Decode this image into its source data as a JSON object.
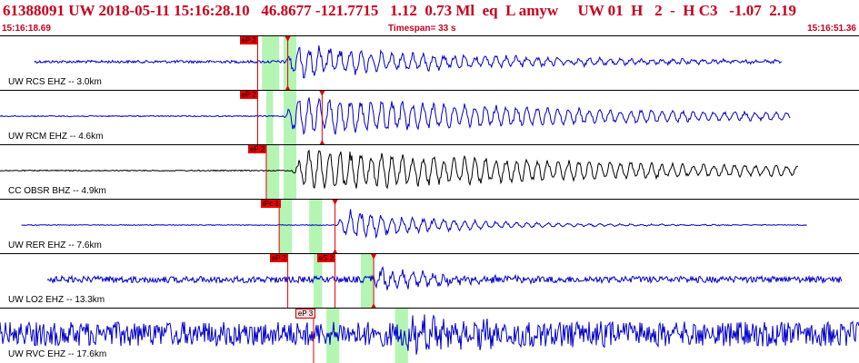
{
  "header": {
    "event_line": "61388091 UW 2018-05-11 15:16:28.10   46.8677 -121.7715   1.12  0.73 Ml  eq  L amyw     UW 01  H   2  -  H C3   -1.07  2.19",
    "start_time": "15:16:18.69",
    "timespan": "Timespan=  33 s",
    "end_time": "15:16:51.36"
  },
  "colors": {
    "header_text": "#c8001e",
    "trace_blue": "#0000cc",
    "trace_black": "#000000",
    "pick_red": "#e60000",
    "window_green": "#b4f5b4"
  },
  "traces": [
    {
      "station": "UW RCS EHZ --  3.0km",
      "color": "blue",
      "amp": 0.55,
      "noise": 0.05,
      "onset": 0.04,
      "end": 0.91,
      "sig": 0.33,
      "decay": 0.22,
      "picks": [
        {
          "label": "eP 2",
          "t": 0.3,
          "style": "red"
        },
        {
          "label": "",
          "t": 0.335,
          "style": "marker"
        }
      ],
      "windows": [
        [
          0.305,
          0.325
        ],
        [
          0.33,
          0.345
        ]
      ]
    },
    {
      "station": "UW RCM EHZ --  4.6km",
      "color": "blue",
      "amp": 0.7,
      "noise": 0.02,
      "onset": 0.0,
      "end": 0.92,
      "sig": 0.33,
      "decay": 0.35,
      "picks": [
        {
          "label": "eP 2",
          "t": 0.3,
          "style": "red"
        },
        {
          "label": "",
          "t": 0.375,
          "style": "marker"
        }
      ],
      "windows": [
        [
          0.31,
          0.318
        ],
        [
          0.33,
          0.345
        ]
      ]
    },
    {
      "station": "CC OBSR BHZ --  4.9km",
      "color": "black",
      "amp": 0.75,
      "noise": 0.02,
      "onset": 0.0,
      "end": 0.93,
      "sig": 0.34,
      "decay": 0.4,
      "picks": [
        {
          "label": "eP 2",
          "t": 0.31,
          "style": "red"
        }
      ],
      "windows": [
        [
          0.31,
          0.325
        ],
        [
          0.33,
          0.345
        ]
      ]
    },
    {
      "station": "UW RER EHZ --  7.6km",
      "color": "blue",
      "amp": 0.55,
      "noise": 0.015,
      "onset": 0.025,
      "end": 0.94,
      "sig": 0.39,
      "decay": 0.12,
      "picks": [
        {
          "label": "iPc 1",
          "t": 0.325,
          "style": "red"
        },
        {
          "label": "",
          "t": 0.39,
          "style": "marker"
        }
      ],
      "windows": [
        [
          0.325,
          0.34
        ],
        [
          0.36,
          0.375
        ]
      ]
    },
    {
      "station": "UW LO2 EHZ --  13.3km",
      "color": "blue",
      "amp": 0.6,
      "noise": 0.12,
      "onset": 0.055,
      "end": 0.98,
      "sig": 0.43,
      "decay": 0.06,
      "picks": [
        {
          "label": "eP 2",
          "t": 0.335,
          "style": "red"
        },
        {
          "label": "eS 2",
          "t": 0.39,
          "style": "red"
        },
        {
          "label": "",
          "t": 0.435,
          "style": "marker"
        }
      ],
      "windows": [
        [
          0.365,
          0.375
        ],
        [
          0.42,
          0.435
        ]
      ]
    },
    {
      "station": "UW RVC EHZ --  17.6km",
      "color": "blue",
      "amp": 0.7,
      "noise": 0.45,
      "onset": 0.0,
      "end": 1.0,
      "sig": 0.47,
      "decay": 0.08,
      "picks": [
        {
          "label": "eP 3",
          "t": 0.365,
          "style": "pink"
        }
      ],
      "windows": [
        [
          0.38,
          0.395
        ],
        [
          0.46,
          0.475
        ]
      ]
    }
  ]
}
